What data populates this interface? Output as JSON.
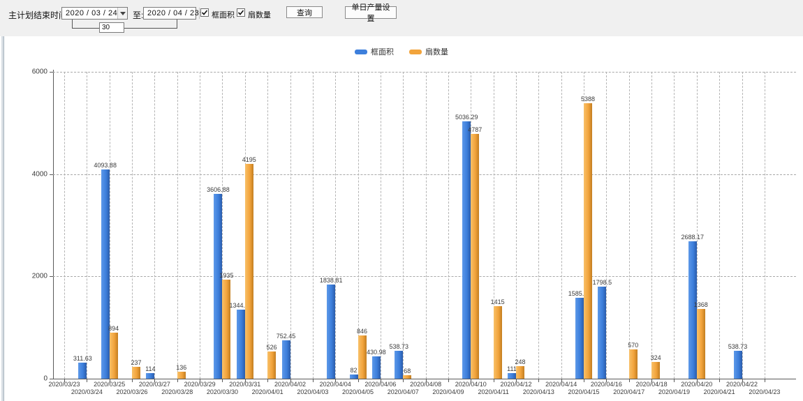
{
  "toolbar": {
    "plan_end_label": "主计划结束时间:",
    "date_from": "2020 / 03 / 24",
    "to_label": "至:",
    "date_to": "2020 / 04 / 23",
    "interval_days": "30",
    "checkboxes": [
      {
        "label": "框面积",
        "checked": true
      },
      {
        "label": "扇数量",
        "checked": true
      }
    ],
    "query_button": "查询",
    "daily_output_button": "单日产量设置"
  },
  "legend": {
    "items": [
      {
        "label": "框面积",
        "color": "#3d7fdc"
      },
      {
        "label": "扇数量",
        "color": "#f2a43c"
      }
    ]
  },
  "chart_data": {
    "type": "bar",
    "title": "",
    "xlabel": "",
    "ylabel": "",
    "ylim": [
      0,
      6000
    ],
    "yticks": [
      0,
      2000,
      4000,
      6000
    ],
    "grid": true,
    "legend_position": "top",
    "categories": [
      "2020/03/23",
      "2020/03/24",
      "2020/03/25",
      "2020/03/26",
      "2020/03/27",
      "2020/03/28",
      "2020/03/29",
      "2020/03/30",
      "2020/03/31",
      "2020/04/01",
      "2020/04/02",
      "2020/04/03",
      "2020/04/04",
      "2020/04/05",
      "2020/04/06",
      "2020/04/07",
      "2020/04/08",
      "2020/04/09",
      "2020/04/10",
      "2020/04/11",
      "2020/04/12",
      "2020/04/13",
      "2020/04/14",
      "2020/04/15",
      "2020/04/16",
      "2020/04/17",
      "2020/04/18",
      "2020/04/19",
      "2020/04/20",
      "2020/04/21",
      "2020/04/22",
      "2020/04/23"
    ],
    "series": [
      {
        "name": "框面积",
        "color": "#3d7fdc",
        "values": [
          null,
          311.63,
          4093.88,
          null,
          114,
          null,
          null,
          3606.88,
          1344.95,
          null,
          752.45,
          null,
          1838.81,
          82,
          430.98,
          538.73,
          null,
          null,
          5036.29,
          null,
          111,
          null,
          null,
          1585.96,
          1798.5,
          null,
          null,
          null,
          2688.17,
          null,
          538.73,
          null
        ]
      },
      {
        "name": "扇数量",
        "color": "#f2a43c",
        "values": [
          null,
          null,
          894,
          237,
          null,
          136,
          null,
          1935,
          4195,
          526,
          null,
          null,
          null,
          846,
          null,
          68,
          null,
          null,
          4787,
          1415,
          248,
          null,
          null,
          5388,
          null,
          570,
          324,
          null,
          1368,
          null,
          null,
          null
        ]
      }
    ]
  }
}
